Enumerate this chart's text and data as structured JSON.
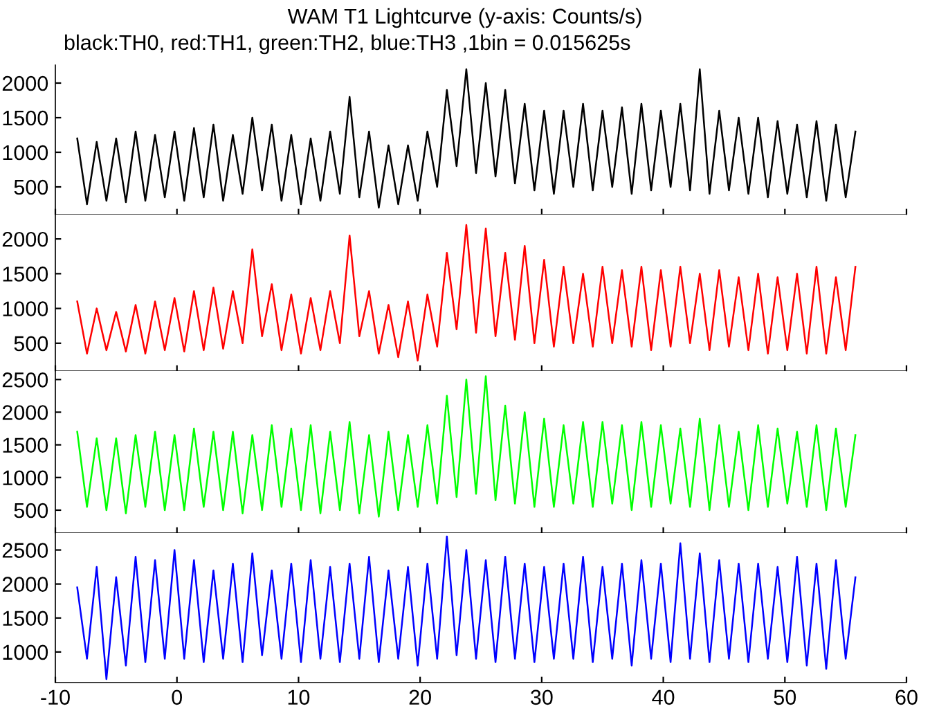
{
  "chart_data": [
    {
      "type": "line",
      "title": "WAM T1 Lightcurve (y-axis: Counts/s)",
      "subtitle": "black:TH0, red:TH1, green:TH2, blue:TH3 ,1bin = 0.015625s",
      "x": [
        -8.2,
        -7.4,
        -6.6,
        -5.8,
        -5.0,
        -4.2,
        -3.4,
        -2.6,
        -1.8,
        -1.0,
        -0.2,
        0.6,
        1.4,
        2.2,
        3.0,
        3.8,
        4.6,
        5.4,
        6.2,
        7.0,
        7.8,
        8.6,
        9.4,
        10.2,
        11.0,
        11.8,
        12.6,
        13.4,
        14.2,
        15.0,
        15.8,
        16.6,
        17.4,
        18.2,
        19.0,
        19.8,
        20.6,
        21.4,
        22.2,
        23.0,
        23.8,
        24.6,
        25.4,
        26.2,
        27.0,
        27.8,
        28.6,
        29.4,
        30.2,
        31.0,
        31.8,
        32.6,
        33.4,
        34.2,
        35.0,
        35.8,
        36.6,
        37.4,
        38.2,
        39.0,
        39.8,
        40.6,
        41.4,
        42.2,
        43.0,
        43.8,
        44.6,
        45.4,
        46.2,
        47.0,
        47.8,
        48.6,
        49.4,
        50.2,
        51.0,
        51.8,
        52.6,
        53.4,
        54.2,
        55.0,
        55.8
      ],
      "series": [
        {
          "color": "#000000",
          "values": [
            1200,
            250,
            1150,
            300,
            1200,
            280,
            1300,
            300,
            1250,
            350,
            1300,
            300,
            1350,
            350,
            1400,
            300,
            1250,
            400,
            1500,
            450,
            1400,
            300,
            1250,
            250,
            1200,
            300,
            1300,
            400,
            1800,
            350,
            1300,
            200,
            1100,
            250,
            1100,
            300,
            1300,
            500,
            1900,
            800,
            2200,
            700,
            2000,
            650,
            1900,
            550,
            1700,
            450,
            1600,
            400,
            1600,
            500,
            1700,
            450,
            1600,
            500,
            1650,
            400,
            1700,
            450,
            1600,
            500,
            1700,
            450,
            2200,
            400,
            1600,
            450,
            1500,
            400,
            1500,
            350,
            1450,
            400,
            1400,
            350,
            1450,
            300,
            1400,
            350,
            1300
          ]
        }
      ],
      "xlim": [
        -10,
        60
      ],
      "xticks": [
        -10,
        0,
        10,
        20,
        30,
        40,
        50,
        60
      ],
      "ylim": [
        100,
        2260
      ],
      "yticks": [
        500,
        1000,
        1500,
        2000
      ],
      "tick_labels": "y",
      "grid": false,
      "line_style": "solid",
      "marker": "none"
    },
    {
      "type": "line",
      "x": [
        -8.2,
        -7.4,
        -6.6,
        -5.8,
        -5.0,
        -4.2,
        -3.4,
        -2.6,
        -1.8,
        -1.0,
        -0.2,
        0.6,
        1.4,
        2.2,
        3.0,
        3.8,
        4.6,
        5.4,
        6.2,
        7.0,
        7.8,
        8.6,
        9.4,
        10.2,
        11.0,
        11.8,
        12.6,
        13.4,
        14.2,
        15.0,
        15.8,
        16.6,
        17.4,
        18.2,
        19.0,
        19.8,
        20.6,
        21.4,
        22.2,
        23.0,
        23.8,
        24.6,
        25.4,
        26.2,
        27.0,
        27.8,
        28.6,
        29.4,
        30.2,
        31.0,
        31.8,
        32.6,
        33.4,
        34.2,
        35.0,
        35.8,
        36.6,
        37.4,
        38.2,
        39.0,
        39.8,
        40.6,
        41.4,
        42.2,
        43.0,
        43.8,
        44.6,
        45.4,
        46.2,
        47.0,
        47.8,
        48.6,
        49.4,
        50.2,
        51.0,
        51.8,
        52.6,
        53.4,
        54.2,
        55.0,
        55.8
      ],
      "series": [
        {
          "color": "#ff0000",
          "values": [
            1100,
            350,
            1000,
            400,
            950,
            380,
            1050,
            350,
            1100,
            400,
            1150,
            380,
            1250,
            400,
            1300,
            420,
            1250,
            500,
            1850,
            600,
            1350,
            400,
            1200,
            350,
            1150,
            400,
            1250,
            500,
            2050,
            600,
            1250,
            350,
            1050,
            300,
            1100,
            250,
            1200,
            450,
            1800,
            700,
            2200,
            650,
            2150,
            600,
            1800,
            550,
            1900,
            500,
            1700,
            450,
            1600,
            500,
            1500,
            450,
            1600,
            500,
            1550,
            450,
            1600,
            400,
            1550,
            450,
            1600,
            500,
            1500,
            400,
            1550,
            450,
            1450,
            400,
            1500,
            350,
            1450,
            400,
            1500,
            350,
            1600,
            350,
            1450,
            400,
            1600
          ]
        }
      ],
      "xlim": [
        -10,
        60
      ],
      "xticks": [
        -10,
        0,
        10,
        20,
        30,
        40,
        50,
        60
      ],
      "ylim": [
        100,
        2350
      ],
      "yticks": [
        500,
        1000,
        1500,
        2000
      ],
      "tick_labels": "y",
      "grid": false,
      "line_style": "solid",
      "marker": "none"
    },
    {
      "type": "line",
      "x": [
        -8.2,
        -7.4,
        -6.6,
        -5.8,
        -5.0,
        -4.2,
        -3.4,
        -2.6,
        -1.8,
        -1.0,
        -0.2,
        0.6,
        1.4,
        2.2,
        3.0,
        3.8,
        4.6,
        5.4,
        6.2,
        7.0,
        7.8,
        8.6,
        9.4,
        10.2,
        11.0,
        11.8,
        12.6,
        13.4,
        14.2,
        15.0,
        15.8,
        16.6,
        17.4,
        18.2,
        19.0,
        19.8,
        20.6,
        21.4,
        22.2,
        23.0,
        23.8,
        24.6,
        25.4,
        26.2,
        27.0,
        27.8,
        28.6,
        29.4,
        30.2,
        31.0,
        31.8,
        32.6,
        33.4,
        34.2,
        35.0,
        35.8,
        36.6,
        37.4,
        38.2,
        39.0,
        39.8,
        40.6,
        41.4,
        42.2,
        43.0,
        43.8,
        44.6,
        45.4,
        46.2,
        47.0,
        47.8,
        48.6,
        49.4,
        50.2,
        51.0,
        51.8,
        52.6,
        53.4,
        54.2,
        55.0,
        55.8
      ],
      "series": [
        {
          "color": "#00ff00",
          "values": [
            1700,
            550,
            1600,
            500,
            1600,
            450,
            1650,
            550,
            1700,
            500,
            1650,
            500,
            1750,
            550,
            1700,
            500,
            1700,
            450,
            1650,
            500,
            1800,
            550,
            1750,
            500,
            1800,
            450,
            1700,
            500,
            1850,
            450,
            1650,
            400,
            1700,
            500,
            1650,
            550,
            1800,
            600,
            2250,
            700,
            2500,
            750,
            2550,
            650,
            2100,
            600,
            2000,
            550,
            1900,
            550,
            1800,
            600,
            1850,
            550,
            1850,
            600,
            1800,
            500,
            1850,
            550,
            1800,
            600,
            1750,
            550,
            1900,
            500,
            1800,
            550,
            1700,
            500,
            1800,
            550,
            1750,
            600,
            1700,
            550,
            1800,
            500,
            1750,
            550,
            1650
          ]
        }
      ],
      "xlim": [
        -10,
        60
      ],
      "xticks": [
        -10,
        0,
        10,
        20,
        30,
        40,
        50,
        60
      ],
      "ylim": [
        150,
        2630
      ],
      "yticks": [
        500,
        1000,
        1500,
        2000,
        2500
      ],
      "tick_labels": "y",
      "grid": false,
      "line_style": "solid",
      "marker": "none"
    },
    {
      "type": "line",
      "x": [
        -8.2,
        -7.4,
        -6.6,
        -5.8,
        -5.0,
        -4.2,
        -3.4,
        -2.6,
        -1.8,
        -1.0,
        -0.2,
        0.6,
        1.4,
        2.2,
        3.0,
        3.8,
        4.6,
        5.4,
        6.2,
        7.0,
        7.8,
        8.6,
        9.4,
        10.2,
        11.0,
        11.8,
        12.6,
        13.4,
        14.2,
        15.0,
        15.8,
        16.6,
        17.4,
        18.2,
        19.0,
        19.8,
        20.6,
        21.4,
        22.2,
        23.0,
        23.8,
        24.6,
        25.4,
        26.2,
        27.0,
        27.8,
        28.6,
        29.4,
        30.2,
        31.0,
        31.8,
        32.6,
        33.4,
        34.2,
        35.0,
        35.8,
        36.6,
        37.4,
        38.2,
        39.0,
        39.8,
        40.6,
        41.4,
        42.2,
        43.0,
        43.8,
        44.6,
        45.4,
        46.2,
        47.0,
        47.8,
        48.6,
        49.4,
        50.2,
        51.0,
        51.8,
        52.6,
        53.4,
        54.2,
        55.0,
        55.8
      ],
      "series": [
        {
          "color": "#0000ff",
          "values": [
            1950,
            900,
            2250,
            600,
            2100,
            800,
            2400,
            850,
            2350,
            900,
            2500,
            900,
            2350,
            850,
            2200,
            900,
            2300,
            850,
            2450,
            950,
            2200,
            900,
            2300,
            850,
            2350,
            900,
            2250,
            850,
            2300,
            900,
            2400,
            850,
            2200,
            900,
            2250,
            800,
            2300,
            900,
            2700,
            950,
            2500,
            900,
            2350,
            850,
            2400,
            900,
            2300,
            850,
            2250,
            900,
            2300,
            900,
            2400,
            850,
            2250,
            900,
            2300,
            800,
            2350,
            900,
            2300,
            850,
            2600,
            900,
            2450,
            850,
            2350,
            900,
            2300,
            850,
            2300,
            900,
            2250,
            850,
            2400,
            800,
            2300,
            750,
            2350,
            900,
            2100
          ]
        }
      ],
      "xlim": [
        -10,
        60
      ],
      "xticks": [
        -10,
        0,
        10,
        20,
        30,
        40,
        50,
        60
      ],
      "ylim": [
        550,
        2750
      ],
      "yticks": [
        1000,
        1500,
        2000,
        2500
      ],
      "grid": false,
      "line_style": "solid",
      "marker": "none"
    }
  ]
}
